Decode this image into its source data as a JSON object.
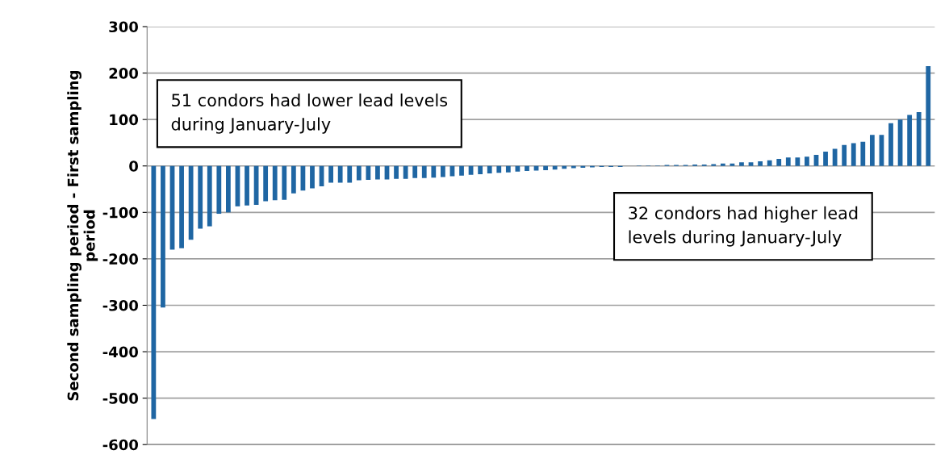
{
  "chart_data": {
    "type": "bar",
    "ylabel": "Second sampling period - First sampling\nperiod",
    "categories": [
      null,
      null,
      null,
      null,
      null,
      null,
      null,
      null,
      null,
      null,
      null,
      null,
      null,
      null,
      null,
      null,
      null,
      null,
      null,
      null,
      null,
      null,
      null,
      null,
      null,
      null,
      null,
      null,
      null,
      null,
      null,
      null,
      null,
      null,
      null,
      null,
      null,
      null,
      null,
      null,
      null,
      null,
      null,
      null,
      null,
      null,
      null,
      null,
      null,
      null,
      null,
      null,
      null,
      null,
      null,
      null,
      null,
      null,
      null,
      null,
      null,
      null,
      null,
      null,
      null,
      null,
      null,
      null,
      null,
      null,
      null,
      null,
      null,
      null,
      null,
      null,
      null,
      null,
      null,
      null,
      null,
      null,
      null,
      null
    ],
    "values": [
      -545,
      -305,
      -180,
      -177,
      -159,
      -135,
      -130,
      -103,
      -100,
      -87,
      -85,
      -84,
      -76,
      -74,
      -73,
      -59,
      -53,
      -48,
      -44,
      -36,
      -36,
      -36,
      -31,
      -30,
      -29,
      -29,
      -28,
      -28,
      -26,
      -26,
      -25,
      -24,
      -22,
      -21,
      -19,
      -18,
      -16,
      -15,
      -14,
      -12,
      -11,
      -10,
      -9,
      -8,
      -6,
      -5,
      -4,
      -3,
      -2,
      -2,
      -2,
      0,
      1,
      1,
      1,
      2,
      2,
      2,
      3,
      3,
      4,
      5,
      5,
      8,
      8,
      10,
      12,
      15,
      18,
      18,
      20,
      24,
      31,
      37,
      45,
      49,
      52,
      67,
      67,
      92,
      100,
      110,
      116,
      215
    ],
    "color": "#1f66a3",
    "ylim": [
      -600,
      300
    ],
    "yticks": [
      -600,
      -500,
      -400,
      -300,
      -200,
      -100,
      0,
      100,
      200,
      300
    ],
    "grid": "y",
    "tick_labels": "y",
    "annotations": [
      "51 condors had lower lead levels\nduring January-July",
      "32 condors had higher lead\nlevels during January-July"
    ]
  }
}
